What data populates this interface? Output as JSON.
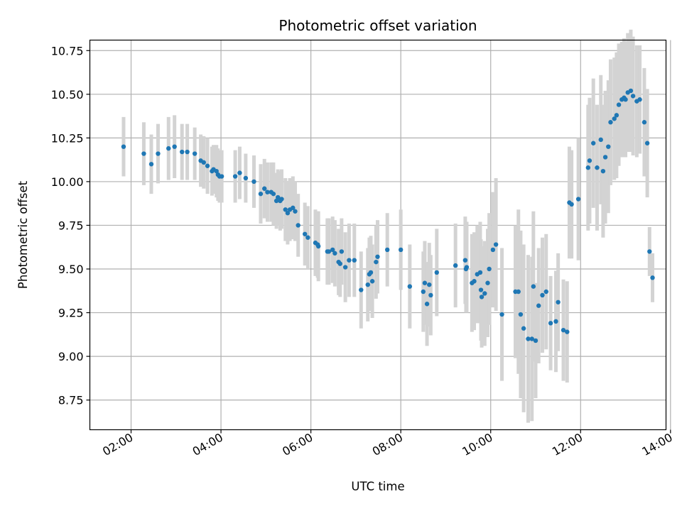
{
  "chart_data": {
    "type": "scatter",
    "title": "Photometric offset variation",
    "xlabel": "UTC time",
    "ylabel": "Photometric offset",
    "x_ticks": [
      "02:00",
      "04:00",
      "06:00",
      "08:00",
      "10:00",
      "12:00",
      "14:00"
    ],
    "y_ticks": [
      "8.75",
      "9.00",
      "9.25",
      "9.50",
      "9.75",
      "10.00",
      "10.25",
      "10.50",
      "10.75"
    ],
    "xlim": [
      "01:05",
      "13:54"
    ],
    "ylim": [
      8.58,
      10.81
    ],
    "grid": true,
    "colors": {
      "points": "#1f77b4",
      "errorbars": "#d3d3d3",
      "grid": "#b0b0b0"
    },
    "series": [
      {
        "x": [
          "01:50",
          "02:17",
          "02:27",
          "02:36",
          "02:50",
          "02:58",
          "03:08",
          "03:15",
          "03:25",
          "03:33",
          "03:37",
          "03:42",
          "03:48",
          "03:50",
          "03:54",
          "03:56",
          "03:58",
          "04:01",
          "04:19",
          "04:25",
          "04:33",
          "04:44",
          "04:53",
          "04:58",
          "05:02",
          "05:07",
          "05:10",
          "05:14",
          "05:16",
          "05:19",
          "05:21",
          "05:26",
          "05:29",
          "05:32",
          "05:36",
          "05:39",
          "05:43",
          "05:52",
          "05:56",
          "06:06",
          "06:09",
          "06:10",
          "06:22",
          "06:24",
          "06:29",
          "06:32",
          "06:37",
          "06:39",
          "06:41",
          "06:46",
          "06:51",
          "06:58",
          "07:07",
          "07:16",
          "07:18",
          "07:20",
          "07:22",
          "07:27",
          "07:29",
          "07:42",
          "08:00",
          "08:12",
          "08:30",
          "08:32",
          "08:35",
          "08:38",
          "08:40",
          "08:48",
          "09:13",
          "09:26",
          "09:27",
          "09:28",
          "09:35",
          "09:38",
          "09:42",
          "09:46",
          "09:47",
          "09:48",
          "09:52",
          "09:56",
          "09:58",
          "10:03",
          "10:07",
          "10:15",
          "10:33",
          "10:37",
          "10:40",
          "10:44",
          "10:50",
          "10:55",
          "10:57",
          "11:00",
          "11:04",
          "11:09",
          "11:14",
          "11:20",
          "11:27",
          "11:30",
          "11:37",
          "11:42",
          "11:45",
          "11:48",
          "11:57",
          "12:10",
          "12:12",
          "12:17",
          "12:22",
          "12:27",
          "12:30",
          "12:33",
          "12:37",
          "12:40",
          "12:45",
          "12:48",
          "12:51",
          "12:55",
          "12:58",
          "13:00",
          "13:03",
          "13:07",
          "13:10",
          "13:15",
          "13:19",
          "13:25",
          "13:29",
          "13:32",
          "13:36"
        ],
        "y": [
          10.2,
          10.16,
          10.1,
          10.16,
          10.19,
          10.2,
          10.17,
          10.17,
          10.16,
          10.12,
          10.11,
          10.09,
          10.06,
          10.07,
          10.06,
          10.04,
          10.03,
          10.03,
          10.03,
          10.05,
          10.02,
          10.0,
          9.93,
          9.96,
          9.94,
          9.94,
          9.93,
          9.89,
          9.91,
          9.89,
          9.9,
          9.84,
          9.82,
          9.84,
          9.85,
          9.83,
          9.75,
          9.7,
          9.68,
          9.65,
          9.64,
          9.63,
          9.6,
          9.6,
          9.61,
          9.59,
          9.54,
          9.53,
          9.6,
          9.51,
          9.55,
          9.55,
          9.38,
          9.41,
          9.47,
          9.48,
          9.43,
          9.54,
          9.57,
          9.61,
          9.61,
          9.4,
          9.37,
          9.42,
          9.3,
          9.41,
          9.35,
          9.48,
          9.52,
          9.55,
          9.5,
          9.51,
          9.42,
          9.43,
          9.47,
          9.48,
          9.38,
          9.34,
          9.36,
          9.42,
          9.5,
          9.61,
          9.64,
          9.24,
          9.37,
          9.37,
          9.24,
          9.16,
          9.1,
          9.1,
          9.4,
          9.09,
          9.29,
          9.35,
          9.37,
          9.19,
          9.2,
          9.31,
          9.15,
          9.14,
          9.88,
          9.87,
          9.9,
          10.08,
          10.12,
          10.22,
          10.08,
          10.24,
          10.06,
          10.14,
          10.2,
          10.34,
          10.36,
          10.38,
          10.44,
          10.47,
          10.48,
          10.47,
          10.51,
          10.52,
          10.49,
          10.46,
          10.47,
          10.34,
          10.22,
          9.6,
          9.45
        ],
        "error": [
          0.17,
          0.18,
          0.17,
          0.17,
          0.18,
          0.18,
          0.16,
          0.16,
          0.15,
          0.15,
          0.15,
          0.16,
          0.14,
          0.14,
          0.15,
          0.15,
          0.15,
          0.15,
          0.15,
          0.15,
          0.14,
          0.15,
          0.17,
          0.17,
          0.17,
          0.17,
          0.18,
          0.16,
          0.16,
          0.17,
          0.17,
          0.18,
          0.18,
          0.18,
          0.18,
          0.17,
          0.18,
          0.18,
          0.18,
          0.19,
          0.19,
          0.2,
          0.19,
          0.19,
          0.19,
          0.19,
          0.19,
          0.19,
          0.19,
          0.2,
          0.21,
          0.21,
          0.22,
          0.21,
          0.21,
          0.21,
          0.21,
          0.21,
          0.21,
          0.21,
          0.23,
          0.24,
          0.23,
          0.24,
          0.24,
          0.24,
          0.23,
          0.25,
          0.24,
          0.25,
          0.25,
          0.26,
          0.28,
          0.28,
          0.28,
          0.29,
          0.29,
          0.29,
          0.3,
          0.31,
          0.32,
          0.33,
          0.38,
          0.38,
          0.38,
          0.47,
          0.48,
          0.48,
          0.48,
          0.47,
          0.43,
          0.33,
          0.33,
          0.33,
          0.33,
          0.27,
          0.29,
          0.28,
          0.29,
          0.29,
          0.32,
          0.31,
          0.35,
          0.36,
          0.36,
          0.37,
          0.36,
          0.37,
          0.38,
          0.38,
          0.38,
          0.36,
          0.35,
          0.36,
          0.35,
          0.33,
          0.34,
          0.33,
          0.34,
          0.35,
          0.34,
          0.32,
          0.31,
          0.31,
          0.31,
          0.14,
          0.14
        ]
      }
    ]
  }
}
